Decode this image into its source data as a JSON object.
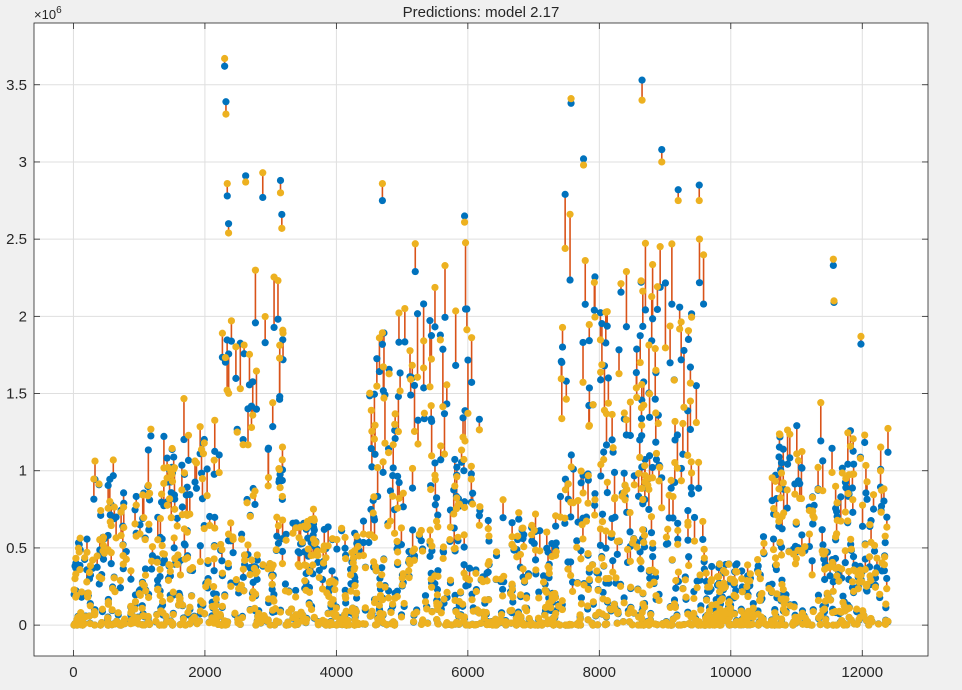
{
  "chart_data": {
    "type": "scatter",
    "title": "Predictions: model 2.17",
    "xlabel": "",
    "ylabel": "",
    "exponent_label": "×10",
    "exponent_power": "6",
    "xlim": [
      -600,
      13000
    ],
    "ylim": [
      -200000,
      3900000
    ],
    "x_ticks": [
      0,
      2000,
      4000,
      6000,
      8000,
      10000,
      12000
    ],
    "x_tick_labels": [
      "0",
      "2000",
      "4000",
      "6000",
      "8000",
      "10000",
      "12000"
    ],
    "y_ticks": [
      0,
      500000,
      1000000,
      1500000,
      2000000,
      2500000,
      3000000,
      3500000
    ],
    "y_tick_labels": [
      "0",
      "0.5",
      "1",
      "1.5",
      "2",
      "2.5",
      "3",
      "3.5"
    ],
    "grid": true,
    "legend": "none",
    "colors": {
      "true_marker": "#0072BD",
      "predicted_marker": "#EDB120",
      "error_line": "#D95319",
      "axes_bg": "#ffffff",
      "figure_bg": "#f0f0f0",
      "grid": "#dfdfdf"
    },
    "series": [
      {
        "role": "true",
        "x": [
          2300,
          2320,
          2340,
          2360,
          2620,
          2880,
          3150,
          3170,
          4700,
          5200,
          5950,
          7480,
          7570,
          7760,
          8650,
          8950,
          9200,
          9520,
          11560,
          11570,
          11980
        ],
        "values": [
          3620000,
          3390000,
          2780000,
          2600000,
          2910000,
          2770000,
          2880000,
          2660000,
          2750000,
          2290000,
          2650000,
          2790000,
          3380000,
          3020000,
          3530000,
          3080000,
          2820000,
          2850000,
          2330000,
          2090000,
          1820000
        ]
      },
      {
        "role": "predicted",
        "x": [
          2300,
          2320,
          2340,
          2360,
          2620,
          2880,
          3150,
          3170,
          4700,
          5200,
          5950,
          7480,
          7570,
          7760,
          8650,
          8950,
          9200,
          9520,
          11560,
          11570,
          11980
        ],
        "values": [
          3670000,
          3310000,
          2860000,
          2540000,
          2870000,
          2930000,
          2800000,
          2570000,
          2860000,
          2470000,
          2610000,
          2440000,
          3410000,
          2980000,
          3400000,
          3000000,
          2750000,
          2750000,
          2370000,
          2100000,
          1870000
        ]
      }
    ],
    "note_density": "dense cloud of ~12400 points; the script below generates a representative background population"
  }
}
